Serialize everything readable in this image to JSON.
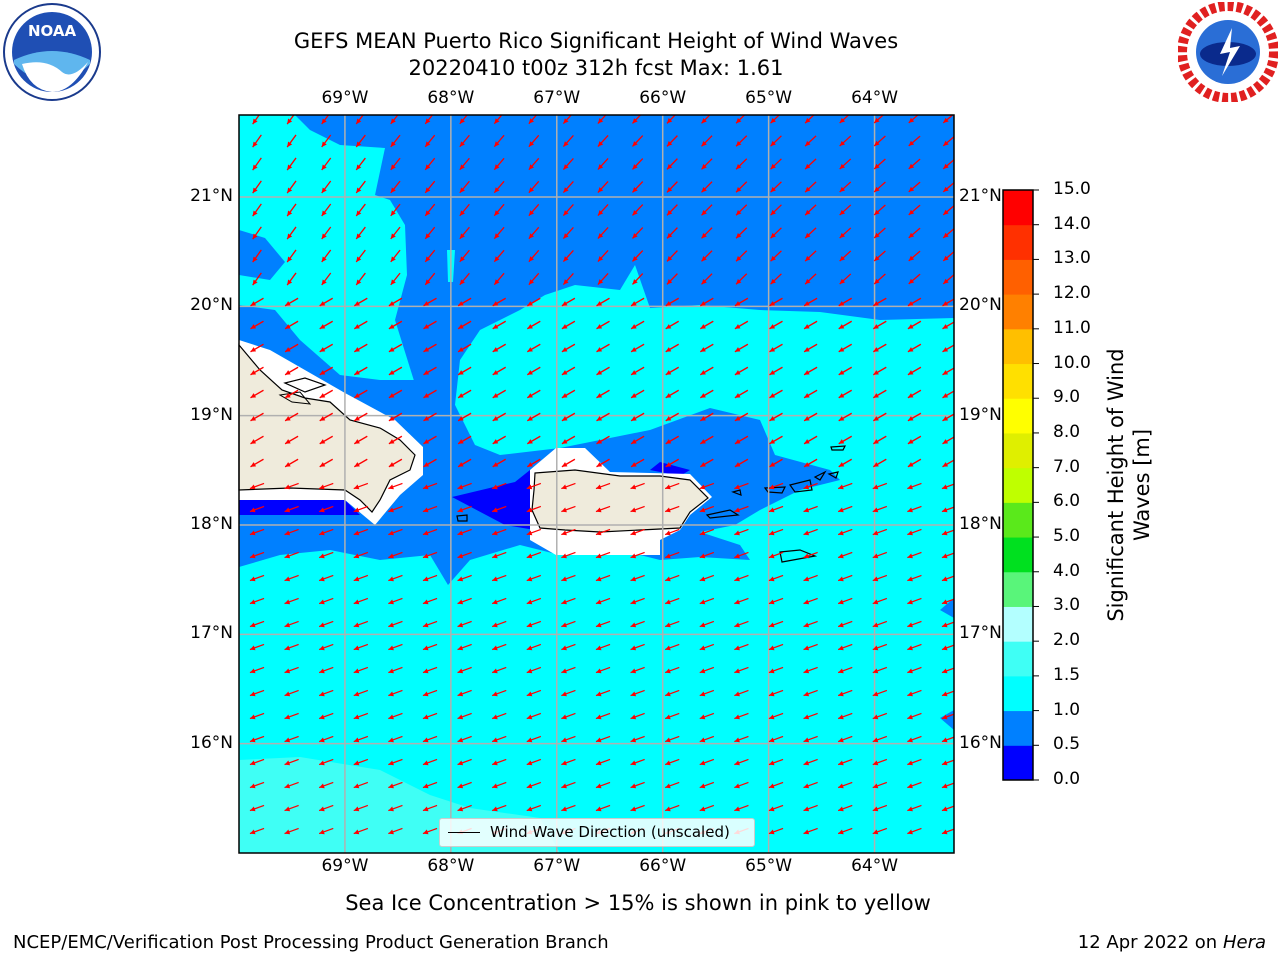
{
  "title_line1": "GEFS MEAN Puerto Rico Significant Height of Wind Waves",
  "title_line2": "20220410 t00z 312h fcst   Max: 1.61",
  "lon_ticks": [
    "69°W",
    "68°W",
    "67°W",
    "66°W",
    "65°W",
    "64°W"
  ],
  "lat_ticks": [
    "21°N",
    "20°N",
    "19°N",
    "18°N",
    "17°N",
    "16°N"
  ],
  "map_extent": {
    "lon_min": -70.0,
    "lon_max": -63.25,
    "lat_min": 15.0,
    "lat_max": 21.75
  },
  "legend_label": "Wind Wave Direction (unscaled)",
  "colorbar": {
    "title_line1": "Significant Height of Wind",
    "title_line2": "Waves [m]",
    "ticks": [
      "0.0",
      "0.5",
      "1.0",
      "1.5",
      "2.0",
      "3.0",
      "4.0",
      "5.0",
      "6.0",
      "7.0",
      "8.0",
      "9.0",
      "10.0",
      "11.0",
      "12.0",
      "13.0",
      "14.0",
      "15.0"
    ],
    "colors": [
      "#0000ff",
      "#0080ff",
      "#00ffff",
      "#3ffff5",
      "#b3ffff",
      "#59f57a",
      "#00e01f",
      "#5ae91b",
      "#bfff00",
      "#dfef00",
      "#ffff00",
      "#ffe000",
      "#ffbf00",
      "#ff8000",
      "#ff6000",
      "#ff3000",
      "#ff0000"
    ]
  },
  "caption": "Sea Ice Concentration > 15% is shown in pink to yellow",
  "footer_left": "NCEP/EMC/Verification Post Processing Product Generation Branch",
  "footer_right_prefix": "12 Apr 2022 on ",
  "footer_right_host": "Hera",
  "logo_left": {
    "icon": "noaa-logo",
    "text": "NOAA"
  },
  "logo_right": {
    "icon": "nws-logo"
  },
  "field_colors": {
    "dark_blue": "#0000ff",
    "mid_blue": "#0080ff",
    "cyan": "#00ffff",
    "light_cyan": "#3ffff5",
    "land": "#efebdc",
    "arrow": "#ff0000"
  }
}
